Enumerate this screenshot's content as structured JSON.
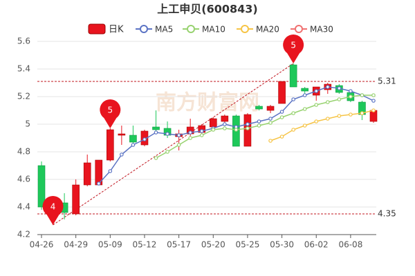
{
  "chart_data": {
    "type": "candlestick",
    "title": "上工申贝(600843)",
    "watermark": "南方财富网",
    "categories": [
      "04-26",
      null,
      null,
      "04-29",
      null,
      null,
      "05-09",
      null,
      null,
      "05-12",
      null,
      null,
      "05-17",
      null,
      null,
      "05-20",
      null,
      null,
      "05-25",
      null,
      null,
      "05-30",
      null,
      null,
      "06-02",
      null,
      null,
      "06-08",
      null,
      null
    ],
    "candle_name": "日K",
    "up_color": "#e8141e",
    "down_color": "#1ec85a",
    "open": [
      4.7,
      4.33,
      4.43,
      4.35,
      4.56,
      4.56,
      4.74,
      4.92,
      4.92,
      4.85,
      4.98,
      4.97,
      4.91,
      4.93,
      4.94,
      4.98,
      5.02,
      5.06,
      4.84,
      5.13,
      5.1,
      5.15,
      5.43,
      5.26,
      5.21,
      5.25,
      5.28,
      5.23,
      5.16,
      5.02
    ],
    "close": [
      4.4,
      4.36,
      4.36,
      4.56,
      4.72,
      4.74,
      4.96,
      4.93,
      4.87,
      4.95,
      4.96,
      4.92,
      4.93,
      4.98,
      4.99,
      5.04,
      5.06,
      4.84,
      5.07,
      5.11,
      5.13,
      5.31,
      5.27,
      5.24,
      5.27,
      5.29,
      5.23,
      5.17,
      5.07,
      5.1
    ],
    "high": [
      4.73,
      4.38,
      4.5,
      4.6,
      4.78,
      4.74,
      4.97,
      4.99,
      4.99,
      4.96,
      5.1,
      5.02,
      4.96,
      5.04,
      5.0,
      5.05,
      5.07,
      5.07,
      5.08,
      5.14,
      5.14,
      5.31,
      5.44,
      5.27,
      5.27,
      5.3,
      5.29,
      5.24,
      5.17,
      5.11
    ],
    "low": [
      4.38,
      4.27,
      4.31,
      4.34,
      4.55,
      4.56,
      4.73,
      4.85,
      4.86,
      4.84,
      4.95,
      4.9,
      4.81,
      4.91,
      4.91,
      4.96,
      4.99,
      4.84,
      4.84,
      5.1,
      5.08,
      5.15,
      5.27,
      5.21,
      5.17,
      5.22,
      5.22,
      5.16,
      5.03,
      5.01
    ],
    "series": [
      {
        "name": "MA5",
        "color": "#5b73c4",
        "values": [
          null,
          null,
          null,
          null,
          null,
          4.57,
          4.66,
          4.78,
          4.85,
          4.89,
          4.94,
          4.93,
          4.92,
          4.94,
          4.95,
          4.97,
          5.0,
          4.98,
          5.0,
          5.02,
          5.04,
          5.09,
          5.18,
          5.21,
          5.24,
          5.27,
          5.26,
          5.24,
          5.21,
          5.17
        ]
      },
      {
        "name": "MA10",
        "color": "#97d26f",
        "values": [
          null,
          null,
          null,
          null,
          null,
          null,
          null,
          null,
          null,
          null,
          4.755,
          4.8,
          4.85,
          4.9,
          4.92,
          4.96,
          4.97,
          4.96,
          4.97,
          4.99,
          5.01,
          5.05,
          5.08,
          5.11,
          5.14,
          5.16,
          5.18,
          5.2,
          5.21,
          5.21
        ]
      },
      {
        "name": "MA20",
        "color": "#f6c445",
        "values": [
          null,
          null,
          null,
          null,
          null,
          null,
          null,
          null,
          null,
          null,
          null,
          null,
          null,
          null,
          null,
          null,
          null,
          null,
          null,
          null,
          4.88,
          4.91,
          4.96,
          4.99,
          5.02,
          5.04,
          5.06,
          5.07,
          5.08,
          5.1
        ]
      },
      {
        "name": "MA30",
        "color": "#f07070",
        "values": [
          null,
          null,
          null,
          null,
          null,
          null,
          null,
          null,
          null,
          null,
          null,
          null,
          null,
          null,
          null,
          null,
          null,
          null,
          null,
          null,
          null,
          null,
          null,
          null,
          null,
          null,
          null,
          null,
          null,
          null
        ]
      }
    ],
    "reference_lines": [
      5.31,
      4.35
    ],
    "reference_color": "#c0141e",
    "markers": [
      {
        "label": "4",
        "index": 1,
        "value": 4.27
      },
      {
        "label": "5",
        "index": 6,
        "value": 4.97
      },
      {
        "label": "5",
        "index": 22,
        "value": 5.44
      }
    ],
    "marker_color": "#e8141e",
    "ylim": [
      4.2,
      5.6
    ],
    "yticks": [
      4.2,
      4.4,
      4.6,
      4.8,
      5,
      5.2,
      5.4,
      5.6
    ],
    "grid": true
  }
}
